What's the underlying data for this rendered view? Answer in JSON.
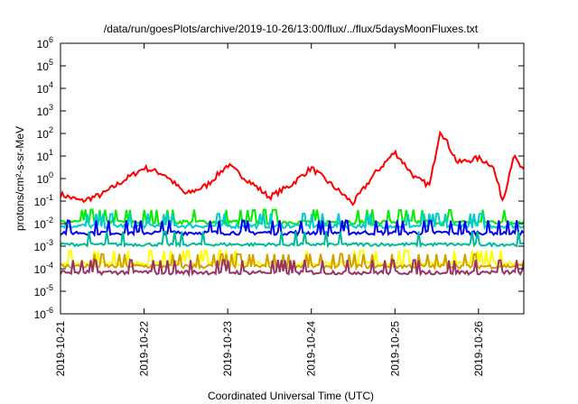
{
  "chart_data": {
    "type": "line",
    "title": "/data/run/goesPlots/archive/2019-10-26/13:00/flux/../flux/5daysMoonFluxes.txt",
    "xlabel": "Coordinated Universal Time (UTC)",
    "ylabel": "protons/cm²-s-sr-MeV",
    "y_scale": "log",
    "ylim": [
      1e-06,
      1000000.0
    ],
    "xlim": [
      "2019-10-21",
      "2019-10-26 13:00"
    ],
    "x_ticks": [
      "2019-10-21",
      "2019-10-22",
      "2019-10-23",
      "2019-10-24",
      "2019-10-25",
      "2019-10-26"
    ],
    "y_ticks": [
      {
        "base": "10",
        "exp": "-6"
      },
      {
        "base": "10",
        "exp": "-5"
      },
      {
        "base": "10",
        "exp": "-4"
      },
      {
        "base": "10",
        "exp": "-3"
      },
      {
        "base": "10",
        "exp": "-2"
      },
      {
        "base": "10",
        "exp": "-1"
      },
      {
        "base": "10",
        "exp": "0"
      },
      {
        "base": "10",
        "exp": "1"
      },
      {
        "base": "10",
        "exp": "2"
      },
      {
        "base": "10",
        "exp": "3"
      },
      {
        "base": "10",
        "exp": "4"
      },
      {
        "base": "10",
        "exp": "5"
      },
      {
        "base": "10",
        "exp": "6"
      }
    ],
    "grid": false,
    "legend": "none",
    "series": [
      {
        "color": "#ff0000",
        "x": [
          "2019-10-21 00:00",
          "2019-10-21 06:00",
          "2019-10-21 12:00",
          "2019-10-21 18:00",
          "2019-10-22 00:00",
          "2019-10-22 06:00",
          "2019-10-22 12:00",
          "2019-10-22 18:00",
          "2019-10-23 00:00",
          "2019-10-23 06:00",
          "2019-10-23 12:00",
          "2019-10-23 18:00",
          "2019-10-24 00:00",
          "2019-10-24 06:00",
          "2019-10-24 12:00",
          "2019-10-24 18:00",
          "2019-10-25 00:00",
          "2019-10-25 06:00",
          "2019-10-25 10:00",
          "2019-10-25 13:00",
          "2019-10-25 18:00",
          "2019-10-26 00:00",
          "2019-10-26 04:00",
          "2019-10-26 07:00",
          "2019-10-26 10:00",
          "2019-10-26 13:00"
        ],
        "y": [
          0.2,
          0.1,
          0.2,
          0.8,
          3,
          1.5,
          0.2,
          0.5,
          4,
          0.8,
          0.15,
          0.5,
          3,
          0.5,
          0.08,
          1.5,
          15,
          1,
          0.5,
          150,
          5,
          8,
          4,
          0.1,
          10,
          2
        ]
      },
      {
        "color": "#00ee00",
        "x": [
          "2019-10-21 00:00",
          "2019-10-26 13:00"
        ],
        "y": [
          0.012,
          0.012
        ]
      },
      {
        "color": "#00cccc",
        "x": [
          "2019-10-21 00:00",
          "2019-10-26 13:00"
        ],
        "y": [
          0.008,
          0.008
        ]
      },
      {
        "color": "#0000ee",
        "x": [
          "2019-10-21 00:00",
          "2019-10-26 13:00"
        ],
        "y": [
          0.004,
          0.004
        ]
      },
      {
        "color": "#00bb99",
        "x": [
          "2019-10-21 00:00",
          "2019-10-26 13:00"
        ],
        "y": [
          0.0012,
          0.0012
        ]
      },
      {
        "color": "#ffff00",
        "x": [
          "2019-10-21 00:00",
          "2019-10-26 13:00"
        ],
        "y": [
          0.00018,
          0.00018
        ]
      },
      {
        "color": "#d4a000",
        "x": [
          "2019-10-21 00:00",
          "2019-10-26 13:00"
        ],
        "y": [
          0.00013,
          0.00013
        ]
      },
      {
        "color": "#993366",
        "x": [
          "2019-10-21 00:00",
          "2019-10-26 13:00"
        ],
        "y": [
          7e-05,
          7e-05
        ]
      }
    ]
  }
}
